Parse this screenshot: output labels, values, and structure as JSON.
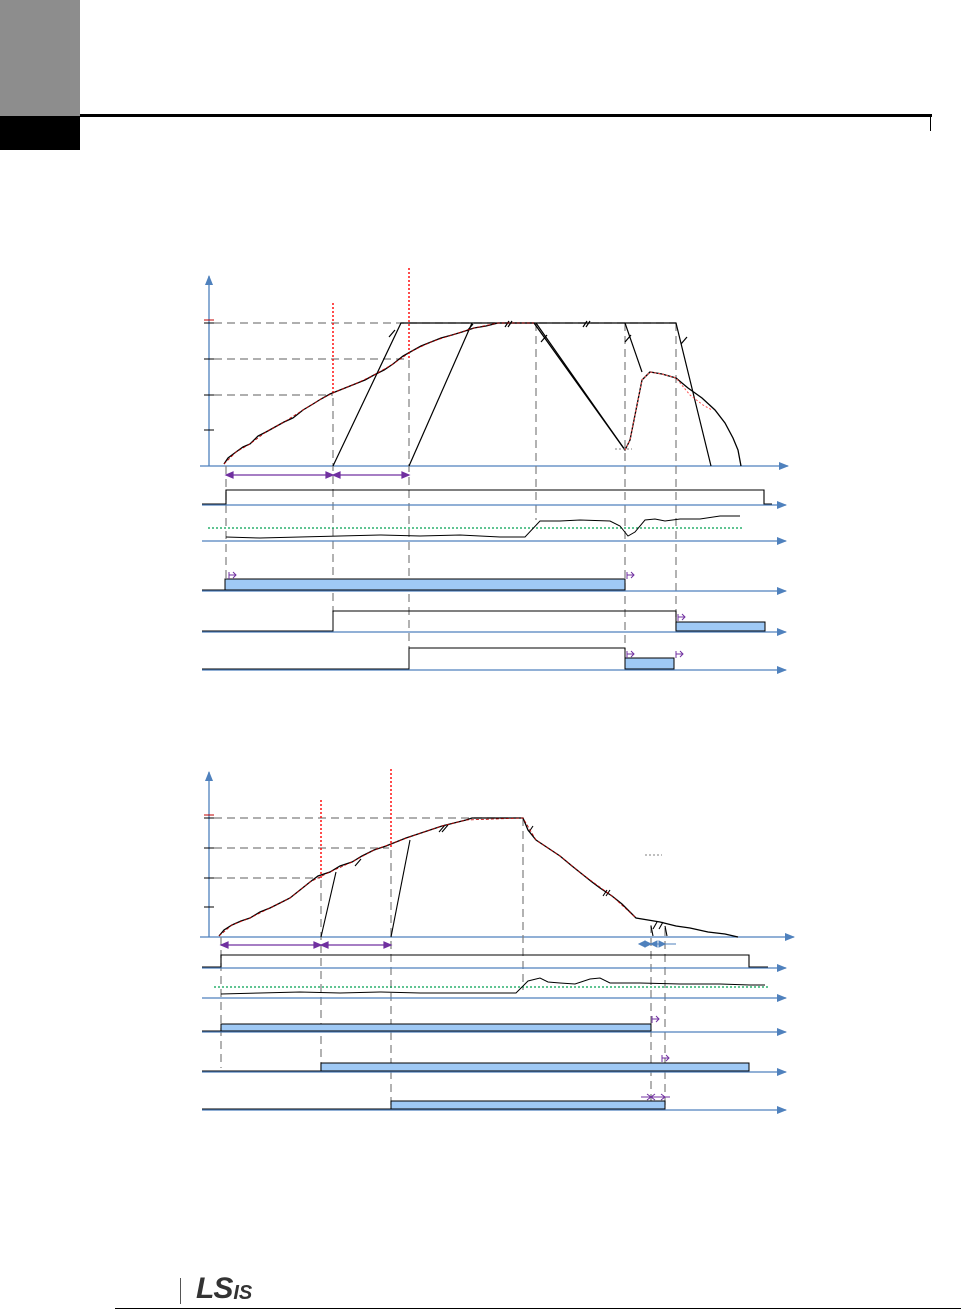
{
  "header": {
    "tab_color": "#8d8d8d",
    "rule_color": "#000000"
  },
  "footer": {
    "logo_main": "LS",
    "logo_suffix": "IS"
  },
  "colors": {
    "axis": "#4f81bd",
    "guide": "#7f7f7f",
    "red_marker": "#ff0000",
    "trace": "#000000",
    "trace_overlay": "#c00000",
    "span_arrow": "#7030a0",
    "fill": "#9fc9f5",
    "threshold": "#00a050"
  },
  "icons": [
    "timing-diagram",
    "ls-is-logo"
  ]
}
